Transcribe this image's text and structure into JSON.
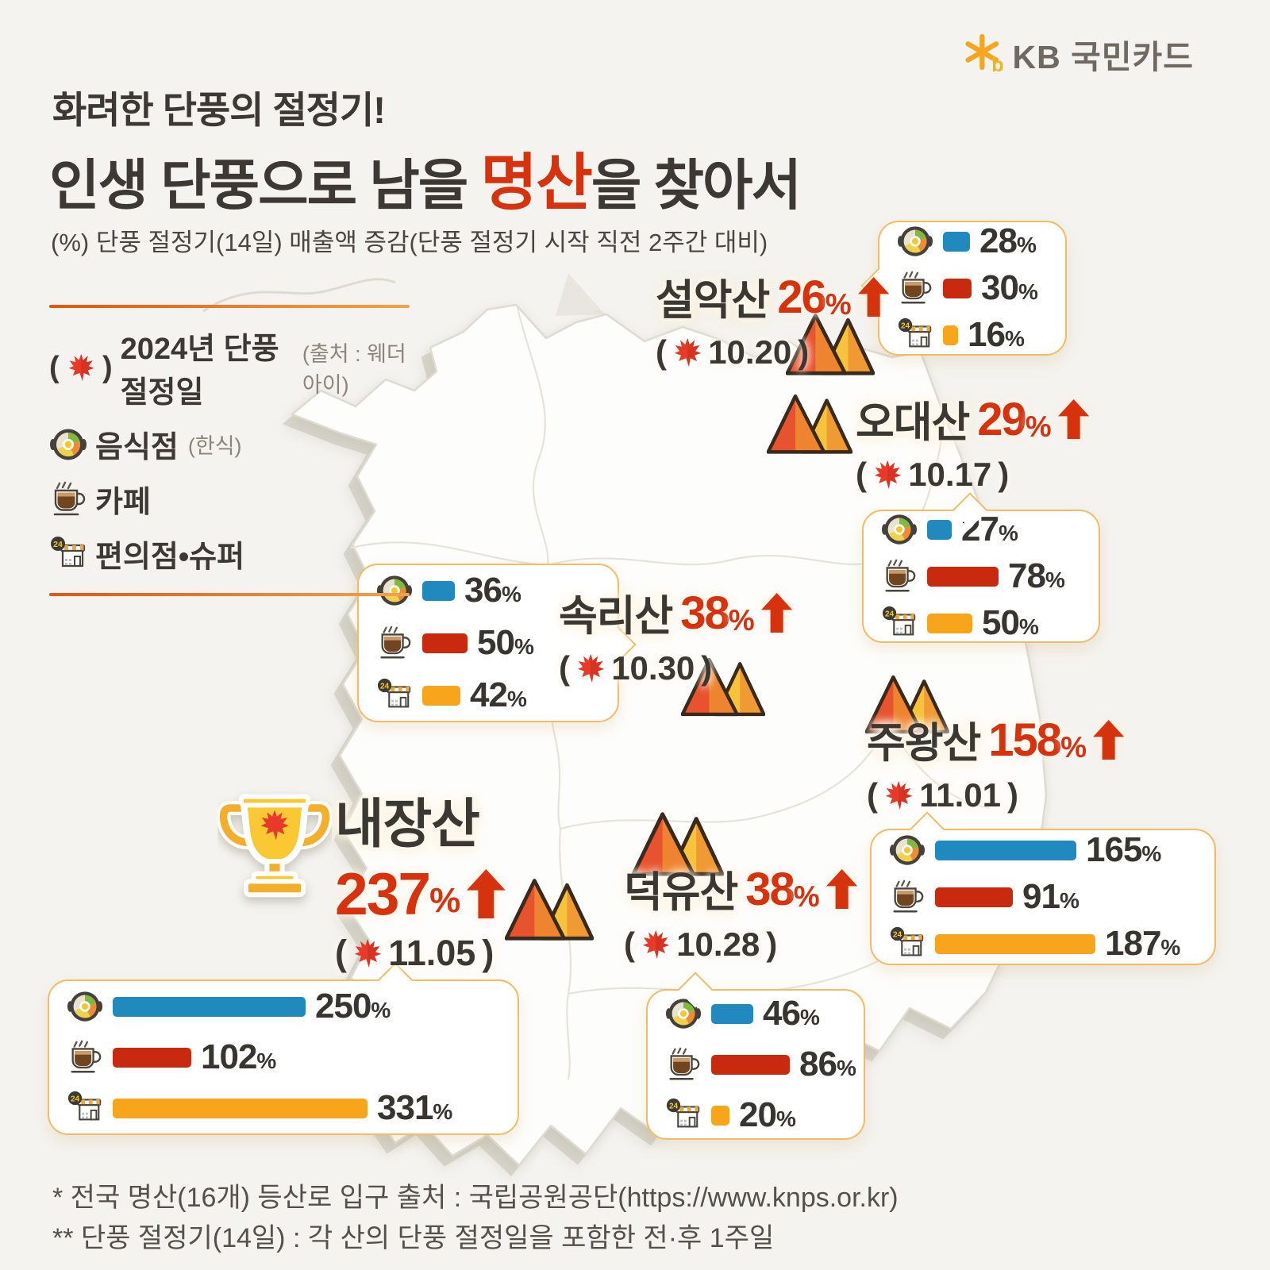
{
  "brand": {
    "logo_text": "KB 국민카드"
  },
  "header": {
    "eyebrow": "화려한 단풍의 절정기!",
    "title_pre": "인생 단풍으로 남을 ",
    "title_highlight": "명산",
    "title_post": "을 찾아서",
    "subtitle": "(%) 단풍 절정기(14일) 매출액 증감(단풍 절정기 시작 직전 2주간 대비)"
  },
  "legend": {
    "peak_label": "2024년 단풍절정일",
    "peak_source": "(출처 : 웨더아이)",
    "items": [
      {
        "icon": "food-icon",
        "label": "음식점",
        "sub": "(한식)"
      },
      {
        "icon": "cafe-icon",
        "label": "카페",
        "sub": ""
      },
      {
        "icon": "store-icon",
        "label": "편의점•슈퍼",
        "sub": ""
      }
    ]
  },
  "format": {
    "paren_open": "(",
    "paren_close": ")",
    "pct_sign": "%"
  },
  "colors": {
    "food": "#2089bd",
    "cafe": "#c9290e",
    "store": "#f9a51b",
    "accent_red": "#d6320d"
  },
  "chart_data": {
    "type": "bar",
    "unit": "%",
    "note": "단풍 절정기(14일) 매출액 증감, 직전 2주간 대비",
    "categories": [
      "음식점(한식)",
      "카페",
      "편의점·슈퍼"
    ],
    "series_colors": [
      "#2089bd",
      "#c9290e",
      "#f9a51b"
    ],
    "mountains": [
      {
        "name": "설악산",
        "pct": 26,
        "date": "10.20",
        "values": [
          28,
          30,
          16
        ],
        "winner": false
      },
      {
        "name": "오대산",
        "pct": 29,
        "date": "10.17",
        "values": [
          27,
          78,
          50
        ],
        "winner": false
      },
      {
        "name": "속리산",
        "pct": 38,
        "date": "10.30",
        "values": [
          36,
          50,
          42
        ],
        "winner": false
      },
      {
        "name": "주왕산",
        "pct": 158,
        "date": "11.01",
        "values": [
          165,
          91,
          187
        ],
        "winner": false
      },
      {
        "name": "내장산",
        "pct": 237,
        "date": "11.05",
        "values": [
          250,
          102,
          331
        ],
        "winner": true
      },
      {
        "name": "덕유산",
        "pct": 38,
        "date": "10.28",
        "values": [
          46,
          86,
          20
        ],
        "winner": false
      }
    ]
  },
  "footnotes": [
    "* 전국 명산(16개) 등산로 입구 출처 : 국립공원공단(https://www.knps.or.kr)",
    "** 단풍 절정기(14일) : 각 산의 단풍 절정일을 포함한 전·후 1주일"
  ]
}
